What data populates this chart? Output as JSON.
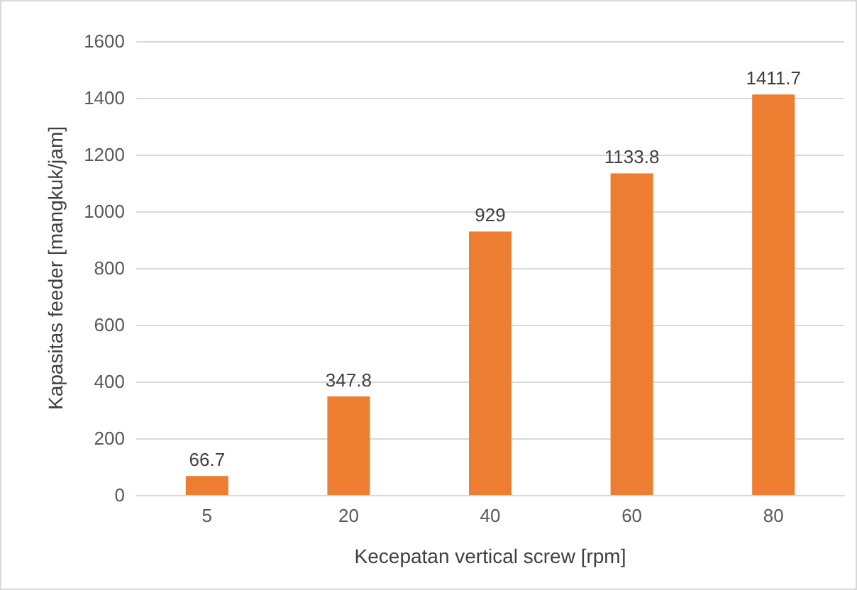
{
  "chart_data": {
    "type": "bar",
    "xlabel": "Kecepatan vertical screw [rpm]",
    "ylabel": "Kapasitas feeder [mangkuk/jam]",
    "categories": [
      "5",
      "20",
      "40",
      "60",
      "80"
    ],
    "values": [
      66.7,
      347.8,
      929,
      1133.8,
      1411.7
    ],
    "color": "#ed7d31",
    "ylim": [
      0,
      1600
    ],
    "yticks": [
      0,
      200,
      400,
      600,
      800,
      1000,
      1200,
      1400,
      1600
    ],
    "grid": "y",
    "data_labels": true
  }
}
